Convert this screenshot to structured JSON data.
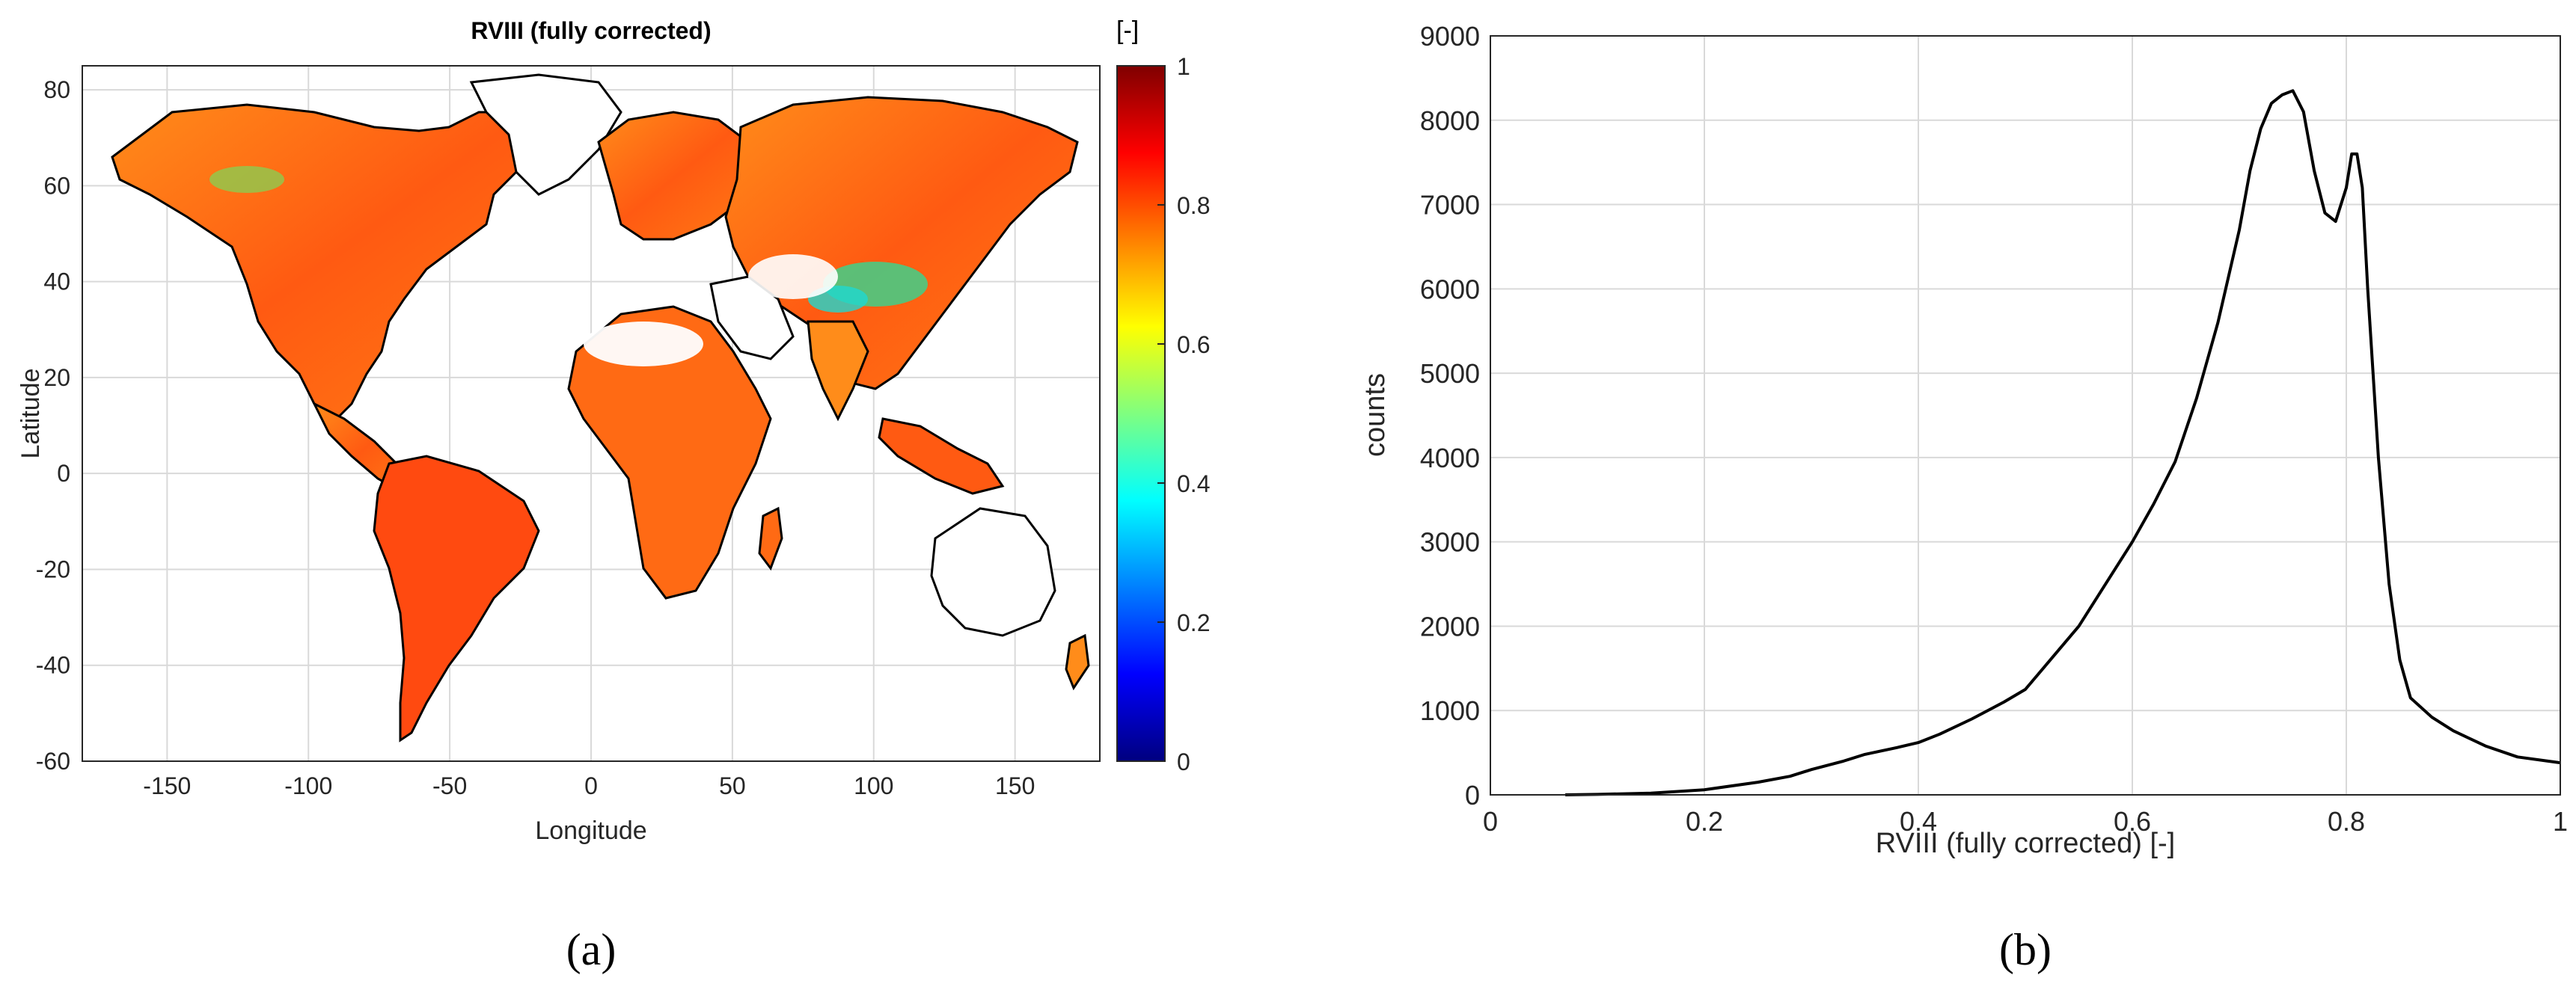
{
  "panel_labels": [
    "(a)",
    "(b)"
  ],
  "chart_data": [
    {
      "type": "heatmap",
      "title": "RVIII (fully corrected)",
      "xlabel": "Longitude",
      "ylabel": "Latitude",
      "xlim": [
        -180,
        180
      ],
      "ylim": [
        -60,
        85
      ],
      "x_ticks": [
        -150,
        -100,
        -50,
        0,
        50,
        100,
        150
      ],
      "y_ticks": [
        -60,
        -40,
        -20,
        0,
        20,
        40,
        60,
        80
      ],
      "grid": true,
      "colorbar": {
        "label": "[-]",
        "range": [
          0,
          1
        ],
        "ticks": [
          0,
          0.2,
          0.4,
          0.6,
          0.8,
          1
        ],
        "colormap": "jet",
        "placement": "right"
      },
      "colors": {
        "land_outline": "#000000",
        "grid": "#d9d9d9"
      }
    },
    {
      "type": "line",
      "xlabel": "RVIII (fully corrected)  [-]",
      "ylabel": "counts",
      "xlim": [
        0,
        1
      ],
      "ylim": [
        0,
        9000
      ],
      "x_ticks": [
        0,
        0.2,
        0.4,
        0.6,
        0.8,
        1
      ],
      "y_ticks": [
        0,
        1000,
        2000,
        3000,
        4000,
        5000,
        6000,
        7000,
        8000,
        9000
      ],
      "grid": true,
      "series": [
        {
          "color": "#000000",
          "x": [
            0.07,
            0.1,
            0.15,
            0.2,
            0.25,
            0.28,
            0.3,
            0.33,
            0.35,
            0.38,
            0.4,
            0.42,
            0.45,
            0.48,
            0.5,
            0.52,
            0.55,
            0.57,
            0.6,
            0.62,
            0.64,
            0.66,
            0.68,
            0.7,
            0.71,
            0.72,
            0.73,
            0.74,
            0.75,
            0.76,
            0.77,
            0.78,
            0.79,
            0.8,
            0.805,
            0.81,
            0.815,
            0.82,
            0.83,
            0.84,
            0.85,
            0.86,
            0.88,
            0.9,
            0.93,
            0.96,
            1.0
          ],
          "y": [
            0,
            5,
            20,
            60,
            150,
            220,
            300,
            400,
            480,
            560,
            620,
            720,
            900,
            1100,
            1250,
            1550,
            2000,
            2400,
            3000,
            3450,
            3950,
            4700,
            5600,
            6700,
            7400,
            7900,
            8200,
            8300,
            8350,
            8100,
            7400,
            6900,
            6800,
            7200,
            7600,
            7600,
            7200,
            6000,
            4000,
            2500,
            1600,
            1150,
            920,
            760,
            580,
            450,
            380
          ]
        }
      ]
    }
  ]
}
